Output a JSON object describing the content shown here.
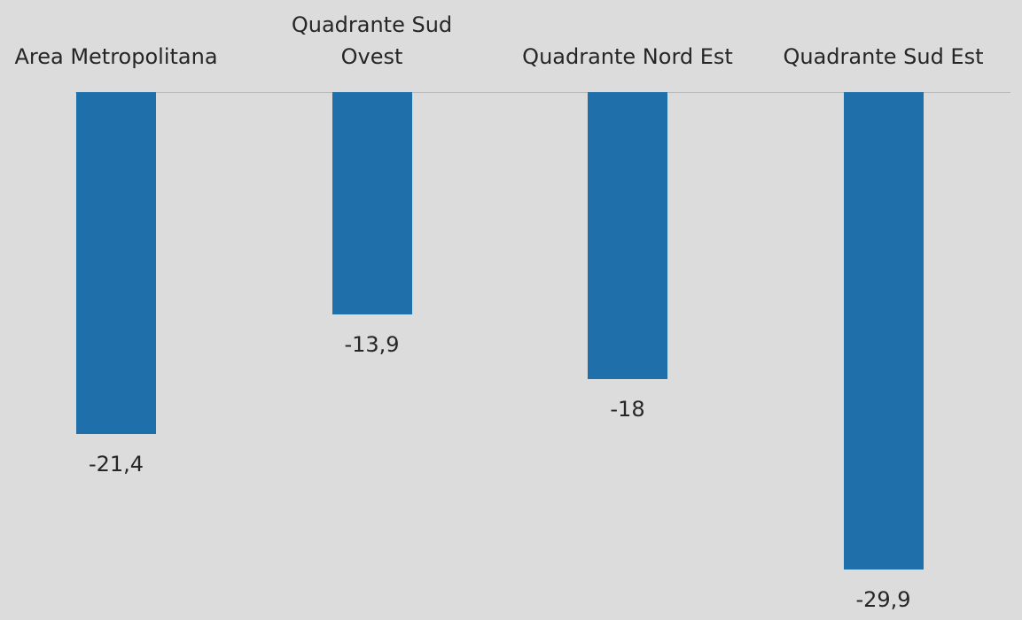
{
  "chart_data": {
    "type": "bar",
    "categories": [
      "Area Metropolitana",
      "Quadrante Sud Ovest",
      "Quadrante Nord Est",
      "Quadrante Sud Est"
    ],
    "values": [
      -21.4,
      -13.9,
      -18,
      -29.9
    ],
    "value_labels": [
      "-21,4",
      "-13,9",
      "-18",
      "-29,9"
    ],
    "color": "#1f6fab"
  }
}
